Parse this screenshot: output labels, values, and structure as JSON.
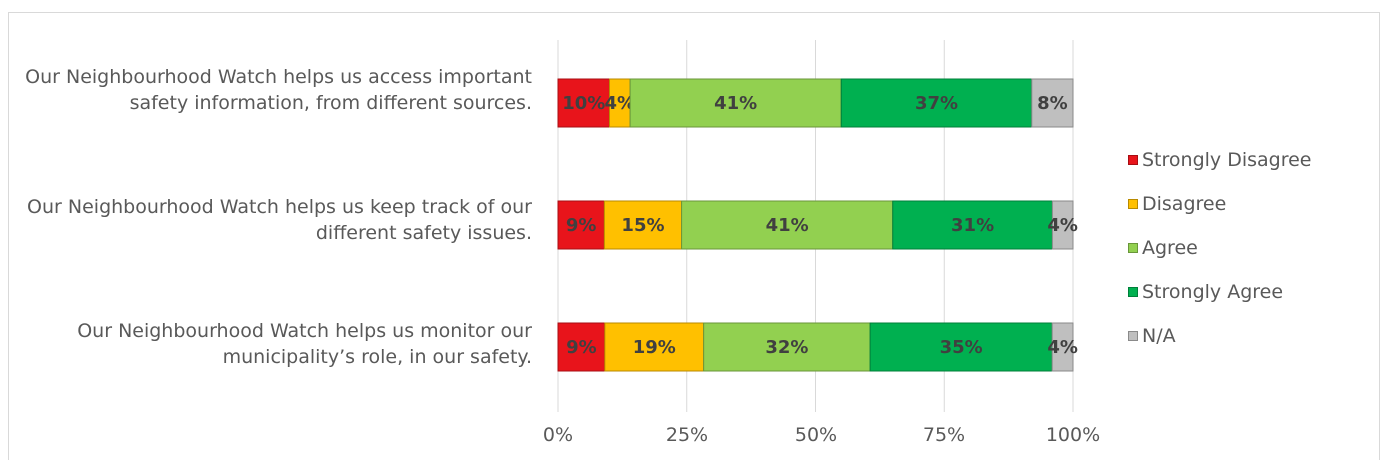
{
  "chart_data": {
    "type": "bar",
    "orientation": "horizontal",
    "stacked": true,
    "categories": [
      "Our Neighbourhood Watch helps us access important safety information, from different sources.",
      "Our Neighbourhood Watch helps us keep track of our different safety issues.",
      "Our Neighbourhood Watch helps us monitor our municipality’s role, in our safety."
    ],
    "series": [
      {
        "name": "Strongly Disagree",
        "color": "#e8141b",
        "values": [
          10,
          9,
          9
        ],
        "labels": [
          "10%",
          "9%",
          "9%"
        ]
      },
      {
        "name": "Disagree",
        "color": "#ffc000",
        "values": [
          4,
          15,
          19
        ],
        "labels": [
          "4%",
          "15%",
          "19%"
        ]
      },
      {
        "name": "Agree",
        "color": "#92d050",
        "values": [
          41,
          41,
          32
        ],
        "labels": [
          "41%",
          "41%",
          "32%"
        ]
      },
      {
        "name": "Strongly Agree",
        "color": "#00b050",
        "values": [
          37,
          31,
          35
        ],
        "labels": [
          "37%",
          "31%",
          "35%"
        ]
      },
      {
        "name": "N/A",
        "color": "#bfbfbf",
        "values": [
          8,
          4,
          4
        ],
        "labels": [
          "8%",
          "4%",
          "4%"
        ]
      }
    ],
    "xlim": [
      0,
      100
    ],
    "xticks": [
      "0%",
      "25%",
      "50%",
      "75%",
      "100%"
    ],
    "grid": true,
    "legend_position": "right",
    "title": "",
    "xlabel": "",
    "ylabel": ""
  }
}
